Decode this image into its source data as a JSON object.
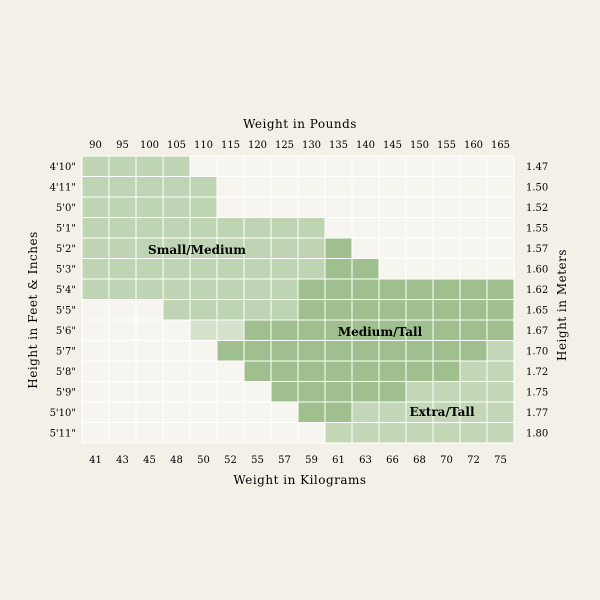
{
  "chart_data": {
    "type": "heatmap",
    "title": "",
    "x_top_label": "Weight in Pounds",
    "x_top_ticks": [
      "90",
      "95",
      "100",
      "105",
      "110",
      "115",
      "120",
      "125",
      "130",
      "135",
      "140",
      "145",
      "150",
      "155",
      "160",
      "165"
    ],
    "x_bottom_label": "Weight in Kilograms",
    "x_bottom_ticks": [
      "41",
      "43",
      "45",
      "48",
      "50",
      "52",
      "55",
      "57",
      "59",
      "61",
      "63",
      "66",
      "68",
      "70",
      "72",
      "75"
    ],
    "y_left_label": "Height in Feet & Inches",
    "y_left_ticks": [
      "4'10\"",
      "4'11\"",
      "5'0\"",
      "5'1\"",
      "5'2\"",
      "5'3\"",
      "5'4\"",
      "5'5\"",
      "5'6\"",
      "5'7\"",
      "5'8\"",
      "5'9\"",
      "5'10\"",
      "5'11\""
    ],
    "y_right_label": "Height in Meters",
    "y_right_ticks": [
      "1.47",
      "1.50",
      "1.52",
      "1.55",
      "1.57",
      "1.60",
      "1.62",
      "1.65",
      "1.67",
      "1.70",
      "1.72",
      "1.75",
      "1.77",
      "1.80"
    ],
    "categories": [
      {
        "code": 0,
        "name": "",
        "color": "#f7f5ef"
      },
      {
        "code": 1,
        "name": "Small/Medium",
        "color": "#bfd4b3"
      },
      {
        "code": 2,
        "name": "",
        "color": "#d6e2cb"
      },
      {
        "code": 3,
        "name": "Medium/Tall",
        "color": "#9fc08e"
      },
      {
        "code": 4,
        "name": "Extra/Tall",
        "color": "#c3d7b7"
      }
    ],
    "grid": [
      [
        1,
        1,
        1,
        1,
        0,
        0,
        0,
        0,
        0,
        0,
        0,
        0,
        0,
        0,
        0,
        0
      ],
      [
        1,
        1,
        1,
        1,
        1,
        0,
        0,
        0,
        0,
        0,
        0,
        0,
        0,
        0,
        0,
        0
      ],
      [
        1,
        1,
        1,
        1,
        1,
        0,
        0,
        0,
        0,
        0,
        0,
        0,
        0,
        0,
        0,
        0
      ],
      [
        1,
        1,
        1,
        1,
        1,
        1,
        1,
        1,
        1,
        0,
        0,
        0,
        0,
        0,
        0,
        0
      ],
      [
        1,
        1,
        1,
        1,
        1,
        1,
        1,
        1,
        1,
        3,
        0,
        0,
        0,
        0,
        0,
        0
      ],
      [
        1,
        1,
        1,
        1,
        1,
        1,
        1,
        1,
        1,
        3,
        3,
        0,
        0,
        0,
        0,
        0
      ],
      [
        1,
        1,
        1,
        1,
        1,
        1,
        1,
        1,
        3,
        3,
        3,
        3,
        3,
        3,
        3,
        3
      ],
      [
        0,
        0,
        0,
        1,
        1,
        1,
        1,
        1,
        3,
        3,
        3,
        3,
        3,
        3,
        3,
        3
      ],
      [
        0,
        0,
        0,
        0,
        2,
        2,
        3,
        3,
        3,
        3,
        3,
        3,
        3,
        3,
        3,
        3
      ],
      [
        0,
        0,
        0,
        0,
        0,
        3,
        3,
        3,
        3,
        3,
        3,
        3,
        3,
        3,
        3,
        4
      ],
      [
        0,
        0,
        0,
        0,
        0,
        0,
        3,
        3,
        3,
        3,
        3,
        3,
        3,
        3,
        4,
        4
      ],
      [
        0,
        0,
        0,
        0,
        0,
        0,
        0,
        3,
        3,
        3,
        3,
        3,
        4,
        4,
        4,
        4
      ],
      [
        0,
        0,
        0,
        0,
        0,
        0,
        0,
        0,
        3,
        3,
        4,
        4,
        4,
        4,
        4,
        4
      ],
      [
        0,
        0,
        0,
        0,
        0,
        0,
        0,
        0,
        0,
        4,
        4,
        4,
        4,
        4,
        4,
        4
      ]
    ],
    "region_labels": [
      "Small/Medium",
      "Medium/Tall",
      "Extra/Tall"
    ],
    "grid_lines": true,
    "legend": "none"
  }
}
